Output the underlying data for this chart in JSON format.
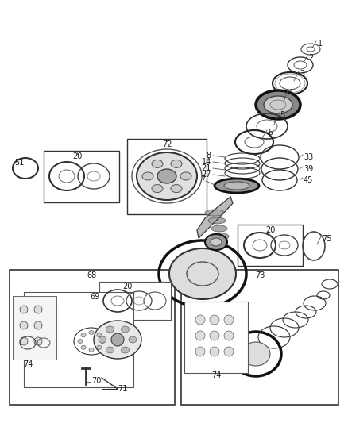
{
  "background_color": "#ffffff",
  "fig_width": 4.38,
  "fig_height": 5.33,
  "dpi": 100,
  "dark": "#1a1a1a",
  "gray": "#555555",
  "light_gray": "#aaaaaa"
}
